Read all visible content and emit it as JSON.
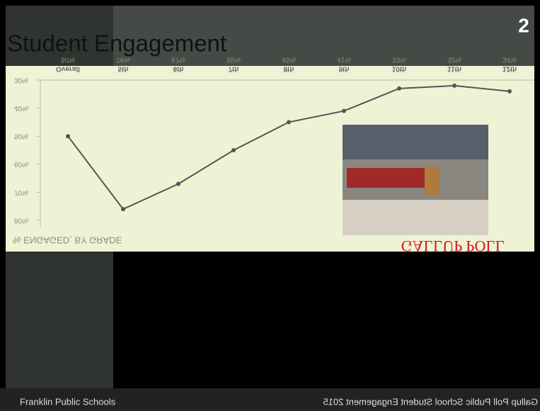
{
  "slide": {
    "title": "Student Engagement",
    "page_number": "2",
    "footer_left": "Franklin Public Schools",
    "footer_right": "Gallup Poll Public School Student Engagement 2015"
  },
  "chart_data": {
    "type": "line",
    "title": "% ENGAGED, BY GRADE",
    "source": "GALLUP POLL",
    "flipped_vertically": true,
    "categories": [
      "Overall",
      "5th",
      "6th",
      "7th",
      "8th",
      "9th",
      "10th",
      "11th",
      "12th"
    ],
    "values": [
      50,
      76,
      67,
      55,
      45,
      41,
      33,
      32,
      34
    ],
    "value_labels": [
      "50%",
      "76%",
      "67%",
      "55%",
      "45%",
      "41%",
      "33%",
      "32%",
      "34%"
    ],
    "color": "#555555",
    "ylim": [
      30,
      80
    ],
    "yticks": [
      {
        "value": 30,
        "label": "30%"
      },
      {
        "value": 40,
        "label": "40%"
      },
      {
        "value": 50,
        "label": "50%"
      },
      {
        "value": 60,
        "label": "60%"
      },
      {
        "value": 70,
        "label": "70%"
      },
      {
        "value": 80,
        "label": "80%"
      }
    ]
  }
}
